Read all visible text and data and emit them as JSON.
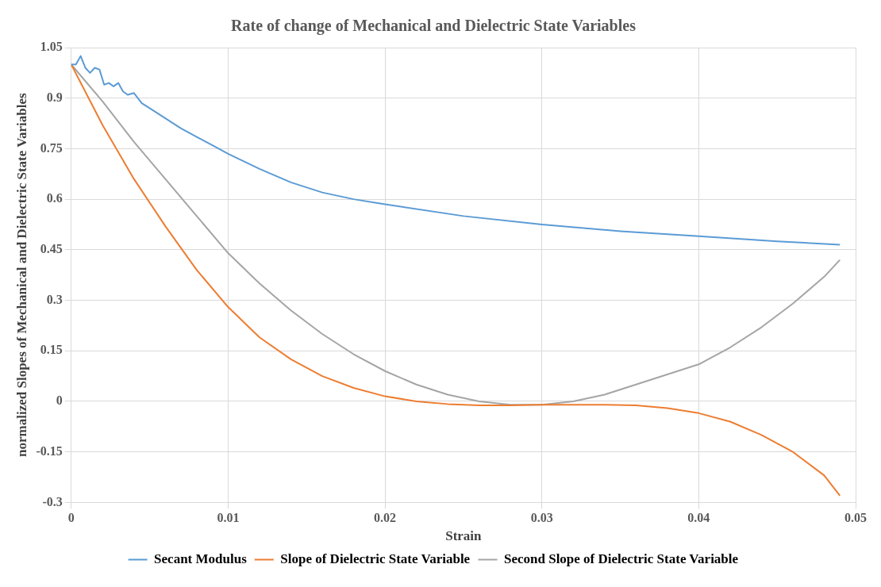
{
  "chart_data": {
    "type": "line",
    "title": "Rate of change of Mechanical and Dielectric State Variables",
    "xlabel": "Strain",
    "ylabel": "normalized Slopes of Mechanical and Dielectric State Variables",
    "xlim": [
      0,
      0.05
    ],
    "xticks": [
      0,
      0.01,
      0.02,
      0.03,
      0.04,
      0.05
    ],
    "ylim": [
      -0.3,
      1.05
    ],
    "yticks": [
      -0.3,
      -0.15,
      0,
      0.15,
      0.3,
      0.45,
      0.6,
      0.75,
      0.9,
      1.05
    ],
    "grid": true,
    "legend": "bottom",
    "marker": "none",
    "line_style": "solid",
    "series": [
      {
        "name": "Secant Modulus",
        "color": "#5b9bd5",
        "x": [
          0,
          0.0003,
          0.0006,
          0.0009,
          0.0012,
          0.0015,
          0.0018,
          0.0021,
          0.0024,
          0.0027,
          0.003,
          0.0033,
          0.0036,
          0.004,
          0.0045,
          0.005,
          0.006,
          0.007,
          0.008,
          0.009,
          0.01,
          0.012,
          0.014,
          0.016,
          0.018,
          0.02,
          0.025,
          0.03,
          0.035,
          0.04,
          0.045,
          0.049
        ],
        "values": [
          1.0,
          1.0,
          1.025,
          0.99,
          0.975,
          0.99,
          0.985,
          0.94,
          0.945,
          0.935,
          0.945,
          0.92,
          0.91,
          0.915,
          0.885,
          0.87,
          0.84,
          0.81,
          0.785,
          0.76,
          0.735,
          0.69,
          0.65,
          0.62,
          0.6,
          0.585,
          0.55,
          0.525,
          0.505,
          0.49,
          0.475,
          0.465
        ]
      },
      {
        "name": "Slope of Dielectric State Variable",
        "color": "#ed7d31",
        "x": [
          0,
          0.002,
          0.004,
          0.006,
          0.008,
          0.01,
          0.012,
          0.014,
          0.016,
          0.018,
          0.02,
          0.022,
          0.024,
          0.026,
          0.028,
          0.03,
          0.032,
          0.034,
          0.036,
          0.038,
          0.04,
          0.042,
          0.044,
          0.046,
          0.048,
          0.049
        ],
        "values": [
          1.0,
          0.82,
          0.66,
          0.52,
          0.39,
          0.28,
          0.19,
          0.125,
          0.075,
          0.04,
          0.015,
          0.0,
          -0.008,
          -0.012,
          -0.012,
          -0.01,
          -0.01,
          -0.01,
          -0.012,
          -0.02,
          -0.035,
          -0.06,
          -0.1,
          -0.15,
          -0.22,
          -0.28
        ]
      },
      {
        "name": "Second Slope of Dielectric State Variable",
        "color": "#a5a5a5",
        "x": [
          0,
          0.002,
          0.004,
          0.006,
          0.008,
          0.01,
          0.012,
          0.014,
          0.016,
          0.018,
          0.02,
          0.022,
          0.024,
          0.026,
          0.028,
          0.03,
          0.032,
          0.034,
          0.036,
          0.038,
          0.04,
          0.042,
          0.044,
          0.046,
          0.048,
          0.049
        ],
        "values": [
          1.0,
          0.89,
          0.77,
          0.66,
          0.55,
          0.44,
          0.35,
          0.27,
          0.2,
          0.14,
          0.09,
          0.05,
          0.02,
          0.0,
          -0.01,
          -0.01,
          0.0,
          0.02,
          0.05,
          0.08,
          0.11,
          0.16,
          0.22,
          0.29,
          0.37,
          0.42
        ]
      }
    ]
  }
}
